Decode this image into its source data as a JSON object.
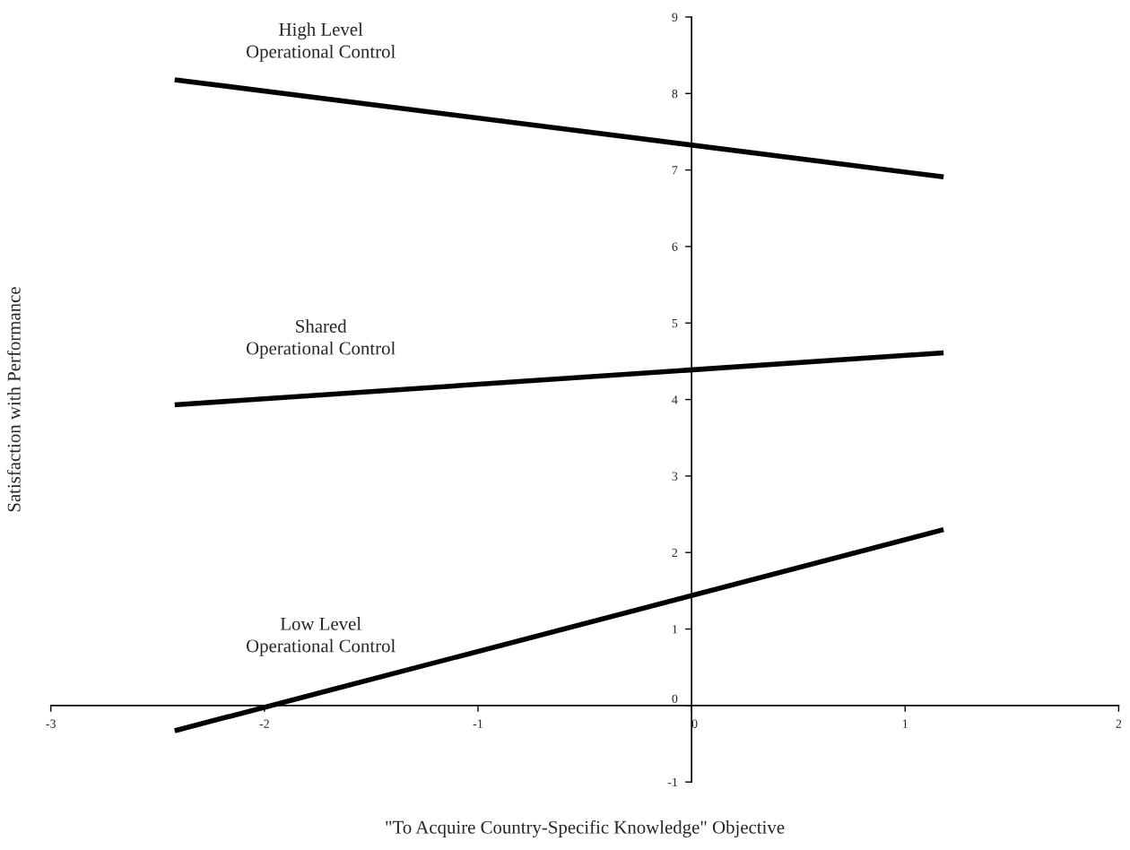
{
  "chart_data": {
    "type": "line",
    "xlabel": "\"To Acquire Country-Specific Knowledge\" Objective",
    "ylabel": "Satisfaction with Performance",
    "x": [
      -2.42,
      1.18
    ],
    "series": [
      {
        "name": "High Level\nOperational Control",
        "color": "#000000",
        "values": [
          8.18,
          6.91
        ]
      },
      {
        "name": "Shared\nOperational Control",
        "color": "#000000",
        "values": [
          3.93,
          4.61
        ]
      },
      {
        "name": "Low Level\nOperational Control",
        "color": "#000000",
        "values": [
          -0.33,
          2.3
        ]
      }
    ],
    "xlim": [
      -3,
      2
    ],
    "xticks": [
      -3,
      -2,
      -1,
      0,
      1,
      2
    ],
    "ylim": [
      -1,
      9
    ],
    "yticks": [
      -1,
      0,
      1,
      2,
      3,
      4,
      5,
      6,
      7,
      8,
      9
    ],
    "grid": false,
    "legend": false,
    "marker": "none",
    "line_style": "solid"
  }
}
